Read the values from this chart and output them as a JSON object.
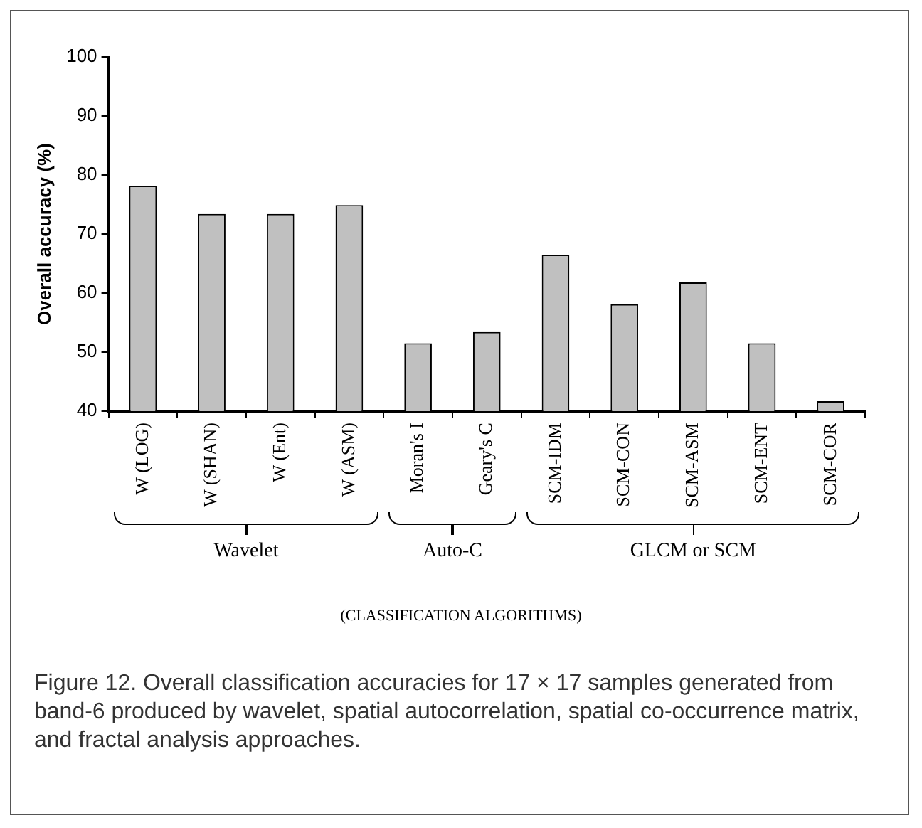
{
  "chart_data": {
    "type": "bar",
    "ylabel": "Overall accuracy (%)",
    "categories": [
      "W (LOG)",
      "W (SHAN)",
      "W (Ent)",
      "W (ASM)",
      "Moran's I",
      "Geary's C",
      "SCM-IDM",
      "SCM-CON",
      "SCM-ASM",
      "SCM-ENT",
      "SCM-COR"
    ],
    "values": [
      78.2,
      73.4,
      73.4,
      74.9,
      51.5,
      53.4,
      66.5,
      58.1,
      61.8,
      51.5,
      41.7
    ],
    "color": "#c0c0c0",
    "ylim": [
      40,
      100
    ],
    "yticks": [
      40,
      50,
      60,
      70,
      80,
      90,
      100
    ],
    "grid": false,
    "legend": false,
    "annotations": [
      "Wavelet",
      "Auto-C",
      "GLCM or SCM",
      "(CLASSIFICATION ALGORITHMS)",
      "Figure 12. Overall classification accuracies for 17 × 17 samples generated from band-6 produced by wavelet, spatial autocorrelation, spatial co-occurrence matrix, and fractal analysis approaches."
    ]
  }
}
